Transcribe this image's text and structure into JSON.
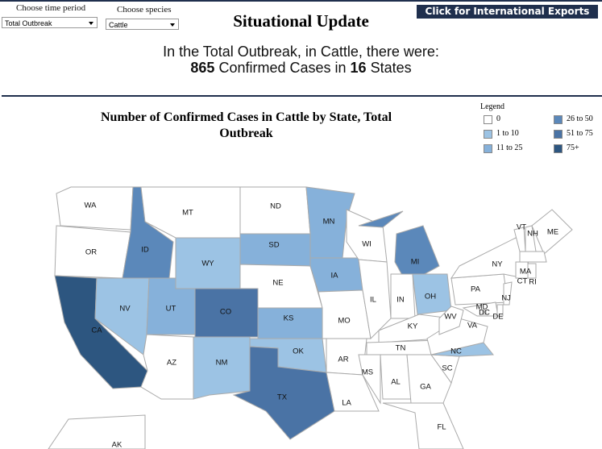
{
  "controls": [
    {
      "label": "Choose time period",
      "selected": "Total Outbreak"
    },
    {
      "label": "Choose species",
      "selected": "Cattle"
    }
  ],
  "header": {
    "title": "Situational Update",
    "button": "Click for International Exports"
  },
  "summary": {
    "intro": "In the Total Outbreak, in Cattle, there were:",
    "cases": 865,
    "cases_text": "Confirmed Cases in",
    "states": 16,
    "states_text": "States"
  },
  "map": {
    "title": "Number of Confirmed Cases in Cattle by State, Total Outbreak",
    "legend": {
      "title": "Legend",
      "items": [
        {
          "label": "0",
          "color": "#ffffff"
        },
        {
          "label": "1 to 10",
          "color": "#9cc3e4"
        },
        {
          "label": "11 to 25",
          "color": "#86b1da"
        },
        {
          "label": "26 to 50",
          "color": "#5b88ba"
        },
        {
          "label": "51 to 75",
          "color": "#4a73a5"
        },
        {
          "label": "75+",
          "color": "#2d5680"
        }
      ]
    },
    "states": [
      {
        "label": "WA",
        "color": "#ffffff"
      },
      {
        "label": "OR",
        "color": "#ffffff"
      },
      {
        "label": "CA",
        "color": "#2d5680"
      },
      {
        "label": "ID",
        "color": "#5b88ba"
      },
      {
        "label": "NV",
        "color": "#9cc3e4"
      },
      {
        "label": "MT",
        "color": "#ffffff"
      },
      {
        "label": "WY",
        "color": "#9cc3e4"
      },
      {
        "label": "UT",
        "color": "#86b1da"
      },
      {
        "label": "CO",
        "color": "#4a73a5"
      },
      {
        "label": "AZ",
        "color": "#ffffff"
      },
      {
        "label": "NM",
        "color": "#9cc3e4"
      },
      {
        "label": "ND",
        "color": "#ffffff"
      },
      {
        "label": "SD",
        "color": "#86b1da"
      },
      {
        "label": "NE",
        "color": "#ffffff"
      },
      {
        "label": "KS",
        "color": "#86b1da"
      },
      {
        "label": "OK",
        "color": "#9cc3e4"
      },
      {
        "label": "TX",
        "color": "#4a73a5"
      },
      {
        "label": "MN",
        "color": "#86b1da"
      },
      {
        "label": "IA",
        "color": "#86b1da"
      },
      {
        "label": "MO",
        "color": "#ffffff"
      },
      {
        "label": "AR",
        "color": "#ffffff"
      },
      {
        "label": "LA",
        "color": "#ffffff"
      },
      {
        "label": "WI",
        "color": "#ffffff"
      },
      {
        "label": "IL",
        "color": "#ffffff"
      },
      {
        "label": "MI",
        "color": "#5b88ba"
      },
      {
        "label": "IN",
        "color": "#ffffff"
      },
      {
        "label": "OH",
        "color": "#9cc3e4"
      },
      {
        "label": "KY",
        "color": "#ffffff"
      },
      {
        "label": "TN",
        "color": "#ffffff"
      },
      {
        "label": "MS",
        "color": "#ffffff"
      },
      {
        "label": "AL",
        "color": "#ffffff"
      },
      {
        "label": "GA",
        "color": "#ffffff"
      },
      {
        "label": "FL",
        "color": "#ffffff"
      },
      {
        "label": "SC",
        "color": "#ffffff"
      },
      {
        "label": "NC",
        "color": "#9cc3e4"
      },
      {
        "label": "VA",
        "color": "#ffffff"
      },
      {
        "label": "WV",
        "color": "#ffffff"
      },
      {
        "label": "PA",
        "color": "#ffffff"
      },
      {
        "label": "NY",
        "color": "#ffffff"
      },
      {
        "label": "MD",
        "color": "#ffffff"
      },
      {
        "label": "DE",
        "color": "#ffffff"
      },
      {
        "label": "NJ",
        "color": "#ffffff"
      },
      {
        "label": "DC",
        "color": "#ffffff"
      },
      {
        "label": "VT",
        "color": "#ffffff"
      },
      {
        "label": "NH",
        "color": "#ffffff"
      },
      {
        "label": "ME",
        "color": "#ffffff"
      },
      {
        "label": "MA",
        "color": "#ffffff"
      },
      {
        "label": "CT",
        "color": "#ffffff"
      },
      {
        "label": "RI",
        "color": "#ffffff"
      },
      {
        "label": "AK",
        "color": "#ffffff"
      }
    ]
  }
}
